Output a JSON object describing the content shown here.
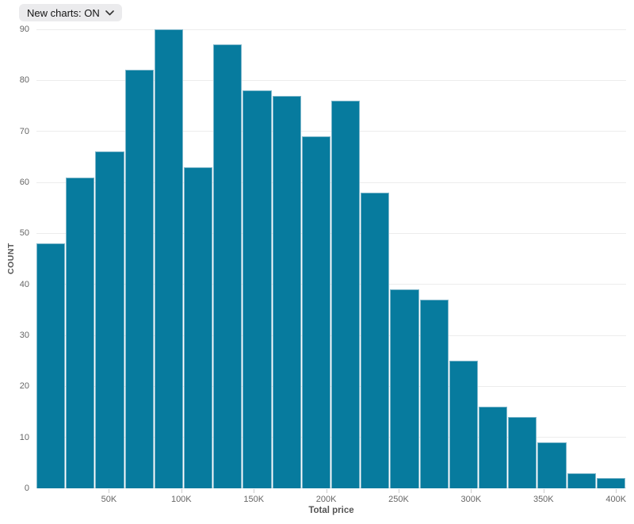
{
  "toolbar": {
    "new_charts_label": "New charts: ON",
    "icons": {
      "chevron_down": "chevron-down"
    }
  },
  "chart_data": {
    "type": "bar",
    "subtype": "histogram",
    "title": "",
    "xlabel": "Total price",
    "ylabel": "COUNT",
    "ylim": [
      0,
      90
    ],
    "y_ticks": [
      0,
      10,
      20,
      30,
      40,
      50,
      60,
      70,
      80,
      90
    ],
    "x_domain_k": [
      0,
      407
    ],
    "bins": {
      "start_k": 0,
      "width_k": 20.35,
      "count": 20
    },
    "x_ticks": [
      {
        "value_k": 50,
        "label": "50K"
      },
      {
        "value_k": 100,
        "label": "100K"
      },
      {
        "value_k": 150,
        "label": "150K"
      },
      {
        "value_k": 200,
        "label": "200K"
      },
      {
        "value_k": 250,
        "label": "250K"
      },
      {
        "value_k": 300,
        "label": "300K"
      },
      {
        "value_k": 350,
        "label": "350K"
      },
      {
        "value_k": 400,
        "label": "400K"
      }
    ],
    "values": [
      48,
      61,
      66,
      82,
      90,
      63,
      87,
      78,
      77,
      69,
      76,
      58,
      39,
      37,
      25,
      16,
      14,
      9,
      3,
      2
    ],
    "grid": true,
    "legend": "none",
    "colors": {
      "bar_fill": "#077b9e",
      "bar_stroke": "#7db6ca",
      "gridline": "#ececec",
      "axis_line": "#d9d9d9",
      "tick_label": "#666666",
      "axis_title": "#555555",
      "chip_bg": "#ebebed",
      "chip_text": "#141414"
    }
  }
}
